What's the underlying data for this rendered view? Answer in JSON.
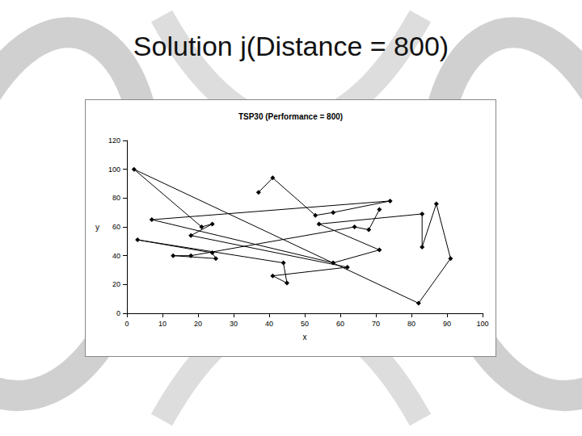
{
  "slide": {
    "title": "Solution j(Distance = 800)"
  },
  "chart_data": {
    "type": "line",
    "title": "TSP30 (Performance = 800)",
    "x_label": "x",
    "y_label": "y",
    "x": [
      37,
      41,
      53,
      58,
      74,
      7,
      58,
      71,
      54,
      83,
      83,
      87,
      91,
      82,
      2,
      21,
      24,
      18,
      62,
      41,
      45,
      44,
      3,
      24,
      25,
      13,
      18,
      64,
      68,
      71
    ],
    "values": [
      84,
      94,
      68,
      70,
      78,
      65,
      35,
      44,
      62,
      69,
      46,
      76,
      38,
      7,
      100,
      60,
      62,
      54,
      32,
      26,
      21,
      35,
      51,
      42,
      38,
      40,
      40,
      60,
      58,
      72
    ],
    "color": "#000000",
    "marker": "diamond",
    "line_style": "solid",
    "xlim": [
      0,
      100
    ],
    "xticks": [
      0,
      10,
      20,
      30,
      40,
      50,
      60,
      70,
      80,
      90,
      100
    ],
    "ylim": [
      0,
      120
    ],
    "yticks": [
      0,
      20,
      40,
      60,
      80,
      100,
      120
    ],
    "grid": false
  }
}
